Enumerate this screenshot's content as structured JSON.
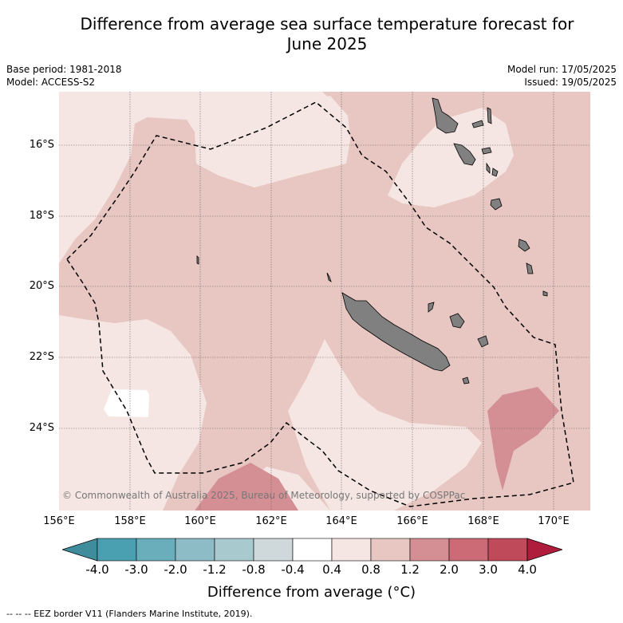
{
  "title_line1": "Difference from average sea surface temperature forecast for",
  "title_line2": "June 2025",
  "meta": {
    "base_period": "Base period: 1981-2018",
    "model": "Model: ACCESS-S2",
    "model_run": "Model run: 17/05/2025",
    "issued": "Issued: 19/05/2025"
  },
  "lat_labels": [
    "16°S",
    "18°S",
    "20°S",
    "22°S",
    "24°S"
  ],
  "lon_labels": [
    "156°E",
    "158°E",
    "160°E",
    "162°E",
    "164°E",
    "166°E",
    "168°E",
    "170°E"
  ],
  "copyright": "© Commonwealth of Australia 2025, Bureau of Meteorology, supported by COSPPac",
  "colorbar": {
    "ticks": [
      "-4.0",
      "-3.0",
      "-2.0",
      "-1.2",
      "-0.8",
      "-0.4",
      "0.4",
      "0.8",
      "1.2",
      "2.0",
      "3.0",
      "4.0"
    ],
    "label": "Difference from average (°C)",
    "colors": [
      "#4a9fb0",
      "#6aaebc",
      "#8dbcc6",
      "#a8c9cd",
      "#cfd8da",
      "#ffffff",
      "#f5e6e4",
      "#e8c7c2",
      "#d48f95",
      "#cc6b75",
      "#bf4a5a",
      "#b01c3c"
    ],
    "under_color": "#3e8c9c",
    "over_color": "#b01c3c"
  },
  "footer": "--  --  -- EEZ border V11 (Flanders Marine Institute, 2019).",
  "map_colors": {
    "land": "#808080",
    "background": "#f5e6e4",
    "level_0_8": "#e8c7c2",
    "level_1_2": "#d48f95",
    "neutral": "#ffffff"
  }
}
